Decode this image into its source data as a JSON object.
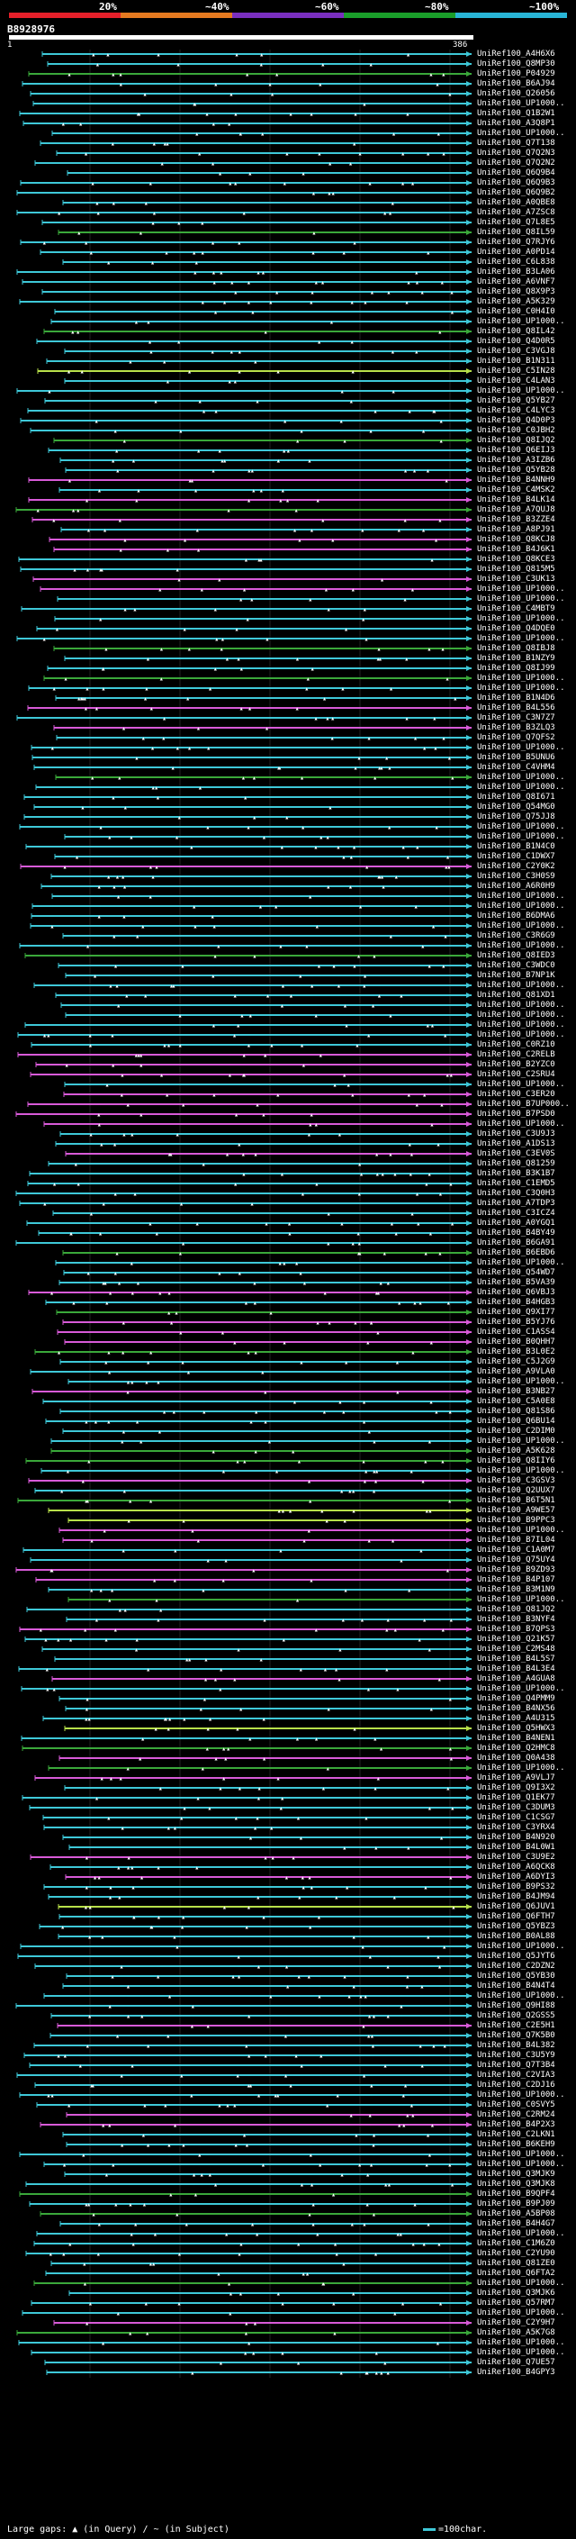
{
  "header": {
    "scale_labels": [
      "20%",
      "~40%",
      "~60%",
      "~80%",
      "~100%"
    ],
    "scale_colors": [
      "#e5202a",
      "#e57a20",
      "#7a2fbf",
      "#1a9e2a",
      "#28b5d6"
    ],
    "query_id": "B8928976",
    "coord_start": "1",
    "coord_end": "386"
  },
  "footer": {
    "legend_text": "Large gaps: ▲ (in Query) / ~ (in Subject)",
    "scale_text": "=100char."
  },
  "colors": {
    "cyan": "#3ec8d8",
    "magenta": "#d85ad8",
    "green": "#3aa83a",
    "lime": "#b8e04a",
    "white": "#ffffff"
  },
  "chart_data": {
    "type": "alignment-overview",
    "query_length": 386,
    "hits": [
      {
        "label": "UniRef100_A4H6X6",
        "color": "cyan"
      },
      {
        "label": "UniRef100_Q8MP30",
        "color": "cyan"
      },
      {
        "label": "UniRef100_P04929",
        "color": "green"
      },
      {
        "label": "UniRef100_B6AJ94",
        "color": "cyan"
      },
      {
        "label": "UniRef100_Q26056",
        "color": "cyan"
      },
      {
        "label": "UniRef100_UP1000..",
        "color": "cyan"
      },
      {
        "label": "UniRef100_Q1B2W1",
        "color": "cyan"
      },
      {
        "label": "UniRef100_A3Q8P1",
        "color": "cyan"
      },
      {
        "label": "UniRef100_UP1000..",
        "color": "cyan"
      },
      {
        "label": "UniRef100_Q7T138",
        "color": "cyan"
      },
      {
        "label": "UniRef100_Q7Q2N3",
        "color": "cyan"
      },
      {
        "label": "UniRef100_Q7Q2N2",
        "color": "cyan"
      },
      {
        "label": "UniRef100_Q6Q9B4",
        "color": "cyan"
      },
      {
        "label": "UniRef100_Q6Q9B3",
        "color": "cyan"
      },
      {
        "label": "UniRef100_Q6Q9B2",
        "color": "cyan"
      },
      {
        "label": "UniRef100_A0QBE8",
        "color": "cyan"
      },
      {
        "label": "UniRef100_A7ZSC8",
        "color": "cyan"
      },
      {
        "label": "UniRef100_Q7L8E5",
        "color": "cyan"
      },
      {
        "label": "UniRef100_Q8IL59",
        "color": "green"
      },
      {
        "label": "UniRef100_Q7RJY6",
        "color": "cyan"
      },
      {
        "label": "UniRef100_A0PD14",
        "color": "cyan"
      },
      {
        "label": "UniRef100_C6L838",
        "color": "cyan"
      },
      {
        "label": "UniRef100_B3LA06",
        "color": "cyan"
      },
      {
        "label": "UniRef100_A6VNF7",
        "color": "cyan"
      },
      {
        "label": "UniRef100_Q8X9P3",
        "color": "cyan"
      },
      {
        "label": "UniRef100_A5K329",
        "color": "cyan"
      },
      {
        "label": "UniRef100_C0H4I0",
        "color": "cyan"
      },
      {
        "label": "UniRef100_UP1000..",
        "color": "cyan"
      },
      {
        "label": "UniRef100_Q8IL42",
        "color": "green"
      },
      {
        "label": "UniRef100_Q4D0R5",
        "color": "cyan"
      },
      {
        "label": "UniRef100_C3VGJ8",
        "color": "cyan"
      },
      {
        "label": "UniRef100_B1N311",
        "color": "cyan"
      },
      {
        "label": "UniRef100_C5IN28",
        "color": "lime"
      },
      {
        "label": "UniRef100_C4LAN3",
        "color": "cyan"
      },
      {
        "label": "UniRef100_UP1000..",
        "color": "cyan"
      },
      {
        "label": "UniRef100_Q5YB27",
        "color": "cyan"
      },
      {
        "label": "UniRef100_C4LYC3",
        "color": "cyan"
      },
      {
        "label": "UniRef100_Q4D0P3",
        "color": "cyan"
      },
      {
        "label": "UniRef100_C0JBH2",
        "color": "cyan"
      },
      {
        "label": "UniRef100_Q8IJQ2",
        "color": "green"
      },
      {
        "label": "UniRef100_Q6EIJ3",
        "color": "cyan"
      },
      {
        "label": "UniRef100_A3IZB6",
        "color": "cyan"
      },
      {
        "label": "UniRef100_Q5YB28",
        "color": "cyan"
      },
      {
        "label": "UniRef100_B4NNH9",
        "color": "magenta"
      },
      {
        "label": "UniRef100_C4MSK2",
        "color": "cyan"
      },
      {
        "label": "UniRef100_B4LK14",
        "color": "magenta"
      },
      {
        "label": "UniRef100_A7QUJ8",
        "color": "green"
      },
      {
        "label": "UniRef100_B3ZZE4",
        "color": "magenta"
      },
      {
        "label": "UniRef100_A8PJ91",
        "color": "cyan"
      },
      {
        "label": "UniRef100_Q8KCJ8",
        "color": "magenta"
      },
      {
        "label": "UniRef100_B4J6K1",
        "color": "magenta"
      },
      {
        "label": "UniRef100_Q8KCE3",
        "color": "cyan"
      },
      {
        "label": "UniRef100_Q815M5",
        "color": "cyan"
      },
      {
        "label": "UniRef100_C3UK13",
        "color": "magenta"
      },
      {
        "label": "UniRef100_UP1000..",
        "color": "magenta"
      },
      {
        "label": "UniRef100_UP1000..",
        "color": "cyan"
      },
      {
        "label": "UniRef100_C4MBT9",
        "color": "cyan"
      },
      {
        "label": "UniRef100_UP1000..",
        "color": "cyan"
      },
      {
        "label": "UniRef100_Q4DQE0",
        "color": "cyan"
      },
      {
        "label": "UniRef100_UP1000..",
        "color": "cyan"
      },
      {
        "label": "UniRef100_Q8IBJ8",
        "color": "green"
      },
      {
        "label": "UniRef100_B1NZY9",
        "color": "cyan"
      },
      {
        "label": "UniRef100_Q8IJ99",
        "color": "cyan"
      },
      {
        "label": "UniRef100_UP1000..",
        "color": "green"
      },
      {
        "label": "UniRef100_UP1000..",
        "color": "cyan"
      },
      {
        "label": "UniRef100_B1N4D6",
        "color": "cyan"
      },
      {
        "label": "UniRef100_B4L556",
        "color": "magenta"
      },
      {
        "label": "UniRef100_C3N7Z7",
        "color": "cyan"
      },
      {
        "label": "UniRef100_B3ZLQ3",
        "color": "magenta"
      },
      {
        "label": "UniRef100_Q7QFS2",
        "color": "cyan"
      },
      {
        "label": "UniRef100_UP1000..",
        "color": "cyan"
      },
      {
        "label": "UniRef100_B5UNU6",
        "color": "cyan"
      },
      {
        "label": "UniRef100_C4VHM4",
        "color": "cyan"
      },
      {
        "label": "UniRef100_UP1000..",
        "color": "green"
      },
      {
        "label": "UniRef100_UP1000..",
        "color": "cyan"
      },
      {
        "label": "UniRef100_Q8I671",
        "color": "cyan"
      },
      {
        "label": "UniRef100_Q54MG0",
        "color": "cyan"
      },
      {
        "label": "UniRef100_Q75JJ8",
        "color": "cyan"
      },
      {
        "label": "UniRef100_UP1000..",
        "color": "cyan"
      },
      {
        "label": "UniRef100_UP1000..",
        "color": "cyan"
      },
      {
        "label": "UniRef100_B1N4C0",
        "color": "cyan"
      },
      {
        "label": "UniRef100_C1DWX7",
        "color": "cyan"
      },
      {
        "label": "UniRef100_C2Y0K2",
        "color": "magenta"
      },
      {
        "label": "UniRef100_C3H0S9",
        "color": "cyan"
      },
      {
        "label": "UniRef100_A6R0H9",
        "color": "cyan"
      },
      {
        "label": "UniRef100_UP1000..",
        "color": "cyan"
      },
      {
        "label": "UniRef100_UP1000..",
        "color": "cyan"
      },
      {
        "label": "UniRef100_B6DMA6",
        "color": "cyan"
      },
      {
        "label": "UniRef100_UP1000..",
        "color": "cyan"
      },
      {
        "label": "UniRef100_C3R6G9",
        "color": "cyan"
      },
      {
        "label": "UniRef100_UP1000..",
        "color": "cyan"
      },
      {
        "label": "UniRef100_Q8IED3",
        "color": "green"
      },
      {
        "label": "UniRef100_C3WDC0",
        "color": "cyan"
      },
      {
        "label": "UniRef100_B7NP1K",
        "color": "cyan"
      },
      {
        "label": "UniRef100_UP1000..",
        "color": "cyan"
      },
      {
        "label": "UniRef100_Q81XD1",
        "color": "cyan"
      },
      {
        "label": "UniRef100_UP1000..",
        "color": "cyan"
      },
      {
        "label": "UniRef100_UP1000..",
        "color": "cyan"
      },
      {
        "label": "UniRef100_UP1000..",
        "color": "cyan"
      },
      {
        "label": "UniRef100_UP1000..",
        "color": "cyan"
      },
      {
        "label": "UniRef100_C0RZ10",
        "color": "cyan"
      },
      {
        "label": "UniRef100_C2RELB",
        "color": "magenta"
      },
      {
        "label": "UniRef100_B2YZC0",
        "color": "magenta"
      },
      {
        "label": "UniRef100_C2SRU4",
        "color": "magenta"
      },
      {
        "label": "UniRef100_UP1000..",
        "color": "cyan"
      },
      {
        "label": "UniRef100_C3ER20",
        "color": "magenta"
      },
      {
        "label": "UniRef100_B7UP000..",
        "color": "magenta"
      },
      {
        "label": "UniRef100_B7PSD0",
        "color": "magenta"
      },
      {
        "label": "UniRef100_UP1000..",
        "color": "magenta"
      },
      {
        "label": "UniRef100_C3U9J3",
        "color": "cyan"
      },
      {
        "label": "UniRef100_A1DS13",
        "color": "cyan"
      },
      {
        "label": "UniRef100_C3EV0S",
        "color": "magenta"
      },
      {
        "label": "UniRef100_Q81259",
        "color": "cyan"
      },
      {
        "label": "UniRef100_B3K1B7",
        "color": "cyan"
      },
      {
        "label": "UniRef100_C1EMD5",
        "color": "cyan"
      },
      {
        "label": "UniRef100_C3Q0H3",
        "color": "cyan"
      },
      {
        "label": "UniRef100_A7TDP3",
        "color": "cyan"
      },
      {
        "label": "UniRef100_C3ICZ4",
        "color": "cyan"
      },
      {
        "label": "UniRef100_A0YGQ1",
        "color": "cyan"
      },
      {
        "label": "UniRef100_B4BY49",
        "color": "cyan"
      },
      {
        "label": "UniRef100_B6GA91",
        "color": "cyan"
      },
      {
        "label": "UniRef100_B6EBD6",
        "color": "green"
      },
      {
        "label": "UniRef100_UP1000..",
        "color": "cyan"
      },
      {
        "label": "UniRef100_Q54WD7",
        "color": "cyan"
      },
      {
        "label": "UniRef100_B5VA39",
        "color": "cyan"
      },
      {
        "label": "UniRef100_Q6VBJ3",
        "color": "magenta"
      },
      {
        "label": "UniRef100_B4HGB3",
        "color": "cyan"
      },
      {
        "label": "UniRef100_Q9XI77",
        "color": "green"
      },
      {
        "label": "UniRef100_B5YJ76",
        "color": "magenta"
      },
      {
        "label": "UniRef100_C1ASS4",
        "color": "magenta"
      },
      {
        "label": "UniRef100_B0QHH7",
        "color": "magenta"
      },
      {
        "label": "UniRef100_B3L0E2",
        "color": "green"
      },
      {
        "label": "UniRef100_C5J2G9",
        "color": "cyan"
      },
      {
        "label": "UniRef100_A9VLA0",
        "color": "cyan"
      },
      {
        "label": "UniRef100_UP1000..",
        "color": "cyan"
      },
      {
        "label": "UniRef100_B3NB27",
        "color": "magenta"
      },
      {
        "label": "UniRef100_C5A0E8",
        "color": "cyan"
      },
      {
        "label": "UniRef100_Q81S86",
        "color": "cyan"
      },
      {
        "label": "UniRef100_Q6BU14",
        "color": "cyan"
      },
      {
        "label": "UniRef100_C2DIM0",
        "color": "cyan"
      },
      {
        "label": "UniRef100_UP1000..",
        "color": "cyan"
      },
      {
        "label": "UniRef100_A5K628",
        "color": "green"
      },
      {
        "label": "UniRef100_Q8IIY6",
        "color": "green"
      },
      {
        "label": "UniRef100_UP1000..",
        "color": "cyan"
      },
      {
        "label": "UniRef100_C3GSV3",
        "color": "magenta"
      },
      {
        "label": "UniRef100_Q2UUX7",
        "color": "cyan"
      },
      {
        "label": "UniRef100_B6T5N1",
        "color": "green"
      },
      {
        "label": "UniRef100_A9WE57",
        "color": "lime"
      },
      {
        "label": "UniRef100_B9PPC3",
        "color": "lime"
      },
      {
        "label": "UniRef100_UP1000..",
        "color": "magenta"
      },
      {
        "label": "UniRef100_B7IL04",
        "color": "magenta"
      },
      {
        "label": "UniRef100_C1A0M7",
        "color": "cyan"
      },
      {
        "label": "UniRef100_Q75UY4",
        "color": "cyan"
      },
      {
        "label": "UniRef100_B9ZD93",
        "color": "magenta"
      },
      {
        "label": "UniRef100_B4P107",
        "color": "magenta"
      },
      {
        "label": "UniRef100_B3M1N9",
        "color": "cyan"
      },
      {
        "label": "UniRef100_UP1000..",
        "color": "green"
      },
      {
        "label": "UniRef100_Q81JQ2",
        "color": "cyan"
      },
      {
        "label": "UniRef100_B3NYF4",
        "color": "cyan"
      },
      {
        "label": "UniRef100_B7QPS3",
        "color": "magenta"
      },
      {
        "label": "UniRef100_Q21K57",
        "color": "cyan"
      },
      {
        "label": "UniRef100_C2MS48",
        "color": "cyan"
      },
      {
        "label": "UniRef100_B4L5S7",
        "color": "cyan"
      },
      {
        "label": "UniRef100_B4L3E4",
        "color": "cyan"
      },
      {
        "label": "UniRef100_A4GUA8",
        "color": "magenta"
      },
      {
        "label": "UniRef100_UP1000..",
        "color": "cyan"
      },
      {
        "label": "UniRef100_Q4PMM9",
        "color": "cyan"
      },
      {
        "label": "UniRef100_B4NX56",
        "color": "cyan"
      },
      {
        "label": "UniRef100_A4U315",
        "color": "cyan"
      },
      {
        "label": "UniRef100_Q5HWX3",
        "color": "lime"
      },
      {
        "label": "UniRef100_B4NEN1",
        "color": "cyan"
      },
      {
        "label": "UniRef100_Q2HMC8",
        "color": "green"
      },
      {
        "label": "UniRef100_Q0A438",
        "color": "magenta"
      },
      {
        "label": "UniRef100_UP1000..",
        "color": "green"
      },
      {
        "label": "UniRef100_A9VLJ7",
        "color": "magenta"
      },
      {
        "label": "UniRef100_Q9I3X2",
        "color": "cyan"
      },
      {
        "label": "UniRef100_Q1EK77",
        "color": "cyan"
      },
      {
        "label": "UniRef100_C3DUM3",
        "color": "cyan"
      },
      {
        "label": "UniRef100_C1CSG7",
        "color": "cyan"
      },
      {
        "label": "UniRef100_C3YRX4",
        "color": "cyan"
      },
      {
        "label": "UniRef100_B4N920",
        "color": "cyan"
      },
      {
        "label": "UniRef100_B4L0W1",
        "color": "cyan"
      },
      {
        "label": "UniRef100_C3U9E2",
        "color": "magenta"
      },
      {
        "label": "UniRef100_A6QCK8",
        "color": "cyan"
      },
      {
        "label": "UniRef100_A6DYI3",
        "color": "magenta"
      },
      {
        "label": "UniRef100_B9PS32",
        "color": "cyan"
      },
      {
        "label": "UniRef100_B4JM94",
        "color": "cyan"
      },
      {
        "label": "UniRef100_Q6JUV1",
        "color": "lime"
      },
      {
        "label": "UniRef100_Q6FTH7",
        "color": "cyan"
      },
      {
        "label": "UniRef100_Q5YBZ3",
        "color": "cyan"
      },
      {
        "label": "UniRef100_B0AL88",
        "color": "cyan"
      },
      {
        "label": "UniRef100_UP1000..",
        "color": "cyan"
      },
      {
        "label": "UniRef100_Q5JYT6",
        "color": "cyan"
      },
      {
        "label": "UniRef100_C2DZN2",
        "color": "cyan"
      },
      {
        "label": "UniRef100_Q5YB30",
        "color": "cyan"
      },
      {
        "label": "UniRef100_B4N4T4",
        "color": "cyan"
      },
      {
        "label": "UniRef100_UP1000..",
        "color": "cyan"
      },
      {
        "label": "UniRef100_Q9HI88",
        "color": "cyan"
      },
      {
        "label": "UniRef100_Q2GSS5",
        "color": "cyan"
      },
      {
        "label": "UniRef100_C2E5H1",
        "color": "magenta"
      },
      {
        "label": "UniRef100_Q7K5B0",
        "color": "cyan"
      },
      {
        "label": "UniRef100_B4L382",
        "color": "cyan"
      },
      {
        "label": "UniRef100_C3U5Y9",
        "color": "cyan"
      },
      {
        "label": "UniRef100_Q7T3B4",
        "color": "cyan"
      },
      {
        "label": "UniRef100_C2VIA3",
        "color": "cyan"
      },
      {
        "label": "UniRef100_C2DJ16",
        "color": "cyan"
      },
      {
        "label": "UniRef100_UP1000..",
        "color": "cyan"
      },
      {
        "label": "UniRef100_C0SVY5",
        "color": "cyan"
      },
      {
        "label": "UniRef100_C2RM24",
        "color": "magenta"
      },
      {
        "label": "UniRef100_B4P2X3",
        "color": "magenta"
      },
      {
        "label": "UniRef100_C2LKN1",
        "color": "cyan"
      },
      {
        "label": "UniRef100_B6KEH9",
        "color": "cyan"
      },
      {
        "label": "UniRef100_UP1000..",
        "color": "cyan"
      },
      {
        "label": "UniRef100_UP1000..",
        "color": "cyan"
      },
      {
        "label": "UniRef100_Q3MJK9",
        "color": "cyan"
      },
      {
        "label": "UniRef100_Q3MJK8",
        "color": "cyan"
      },
      {
        "label": "UniRef100_B9QPF4",
        "color": "green"
      },
      {
        "label": "UniRef100_B9PJ09",
        "color": "cyan"
      },
      {
        "label": "UniRef100_A5BP08",
        "color": "green"
      },
      {
        "label": "UniRef100_B4H4G7",
        "color": "cyan"
      },
      {
        "label": "UniRef100_UP1000..",
        "color": "cyan"
      },
      {
        "label": "UniRef100_C1M6Z0",
        "color": "cyan"
      },
      {
        "label": "UniRef100_C2YU90",
        "color": "cyan"
      },
      {
        "label": "UniRef100_Q81ZE0",
        "color": "cyan"
      },
      {
        "label": "UniRef100_Q6FTA2",
        "color": "cyan"
      },
      {
        "label": "UniRef100_UP1000..",
        "color": "green"
      },
      {
        "label": "UniRef100_Q3MJK6",
        "color": "cyan"
      },
      {
        "label": "UniRef100_Q57RM7",
        "color": "cyan"
      },
      {
        "label": "UniRef100_UP1000..",
        "color": "cyan"
      },
      {
        "label": "UniRef100_C2Y9H7",
        "color": "magenta"
      },
      {
        "label": "UniRef100_A5K7G8",
        "color": "green"
      },
      {
        "label": "UniRef100_UP1000..",
        "color": "cyan"
      },
      {
        "label": "UniRef100_UP1000..",
        "color": "cyan"
      },
      {
        "label": "UniRef100_Q7UE57",
        "color": "cyan"
      },
      {
        "label": "UniRef100_B4GPY3",
        "color": "cyan"
      }
    ]
  }
}
